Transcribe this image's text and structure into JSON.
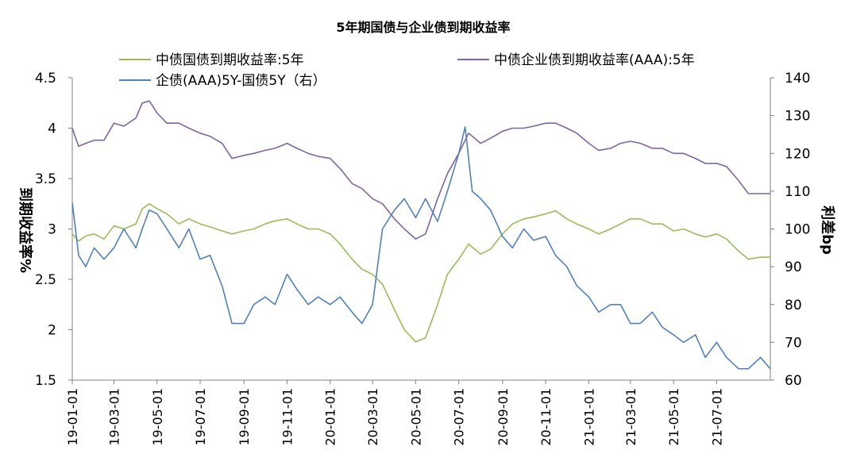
{
  "chart_data": {
    "type": "line",
    "title": "5年期国债与企业债到期收益率",
    "ylabel_left": "到期收益率%",
    "ylabel_right": "利差bp",
    "ylim_left": [
      1.5,
      4.5
    ],
    "yticks_left": [
      "1.5",
      "2",
      "2.5",
      "3",
      "3.5",
      "4",
      "4.5"
    ],
    "ylim_right": [
      60,
      140
    ],
    "yticks_right": [
      "60",
      "70",
      "80",
      "90",
      "100",
      "110",
      "120",
      "130",
      "140"
    ],
    "xlim": [
      "2019-01-01",
      "2021-09-15"
    ],
    "xticks": [
      "19-01-01",
      "19-03-01",
      "19-05-01",
      "19-07-01",
      "19-09-01",
      "19-11-01",
      "20-01-01",
      "20-03-01",
      "20-05-01",
      "20-07-01",
      "20-09-01",
      "20-11-01",
      "21-01-01",
      "21-03-01",
      "21-05-01",
      "21-07-01"
    ],
    "legend": {
      "placement": "top",
      "entries": [
        "中债国债到期收益率:5年",
        "中债企业债到期收益率(AAA):5年",
        "企债(AAA)5Y-国债5Y（右）"
      ]
    },
    "series": [
      {
        "name": "中债国债到期收益率:5年",
        "axis": "left",
        "color": "#9BBB59",
        "x": [
          "2019-01-01",
          "2019-01-10",
          "2019-01-20",
          "2019-02-01",
          "2019-02-15",
          "2019-03-01",
          "2019-03-15",
          "2019-04-01",
          "2019-04-10",
          "2019-04-20",
          "2019-05-01",
          "2019-05-15",
          "2019-06-01",
          "2019-06-15",
          "2019-07-01",
          "2019-07-15",
          "2019-08-01",
          "2019-08-15",
          "2019-09-01",
          "2019-09-15",
          "2019-10-01",
          "2019-10-15",
          "2019-11-01",
          "2019-11-15",
          "2019-12-01",
          "2019-12-15",
          "2020-01-01",
          "2020-01-15",
          "2020-02-01",
          "2020-02-15",
          "2020-03-01",
          "2020-03-15",
          "2020-04-01",
          "2020-04-15",
          "2020-05-01",
          "2020-05-15",
          "2020-06-01",
          "2020-06-15",
          "2020-07-01",
          "2020-07-15",
          "2020-08-01",
          "2020-08-15",
          "2020-09-01",
          "2020-09-15",
          "2020-10-01",
          "2020-10-15",
          "2020-11-01",
          "2020-11-15",
          "2020-12-01",
          "2020-12-15",
          "2021-01-01",
          "2021-01-15",
          "2021-02-01",
          "2021-02-15",
          "2021-03-01",
          "2021-03-15",
          "2021-04-01",
          "2021-04-15",
          "2021-05-01",
          "2021-05-15",
          "2021-06-01",
          "2021-06-15",
          "2021-07-01",
          "2021-07-15",
          "2021-08-01",
          "2021-08-15",
          "2021-09-01",
          "2021-09-15"
        ],
        "values": [
          2.95,
          2.88,
          2.93,
          2.95,
          2.9,
          3.03,
          3.0,
          3.05,
          3.2,
          3.25,
          3.2,
          3.15,
          3.05,
          3.1,
          3.05,
          3.02,
          2.98,
          2.95,
          2.98,
          3.0,
          3.05,
          3.08,
          3.1,
          3.05,
          3.0,
          3.0,
          2.95,
          2.85,
          2.7,
          2.6,
          2.55,
          2.45,
          2.2,
          2.0,
          1.88,
          1.92,
          2.25,
          2.55,
          2.7,
          2.85,
          2.75,
          2.8,
          2.95,
          3.05,
          3.1,
          3.12,
          3.15,
          3.18,
          3.1,
          3.05,
          3.0,
          2.95,
          3.0,
          3.05,
          3.1,
          3.1,
          3.05,
          3.05,
          2.98,
          3.0,
          2.95,
          2.92,
          2.95,
          2.9,
          2.78,
          2.7,
          2.72,
          2.72
        ]
      },
      {
        "name": "中债企业债到期收益率(AAA):5年",
        "axis": "left",
        "color": "#8064A2",
        "x": [
          "2019-01-01",
          "2019-01-10",
          "2019-01-20",
          "2019-02-01",
          "2019-02-15",
          "2019-03-01",
          "2019-03-15",
          "2019-04-01",
          "2019-04-10",
          "2019-04-20",
          "2019-05-01",
          "2019-05-15",
          "2019-06-01",
          "2019-06-15",
          "2019-07-01",
          "2019-07-15",
          "2019-08-01",
          "2019-08-15",
          "2019-09-01",
          "2019-09-15",
          "2019-10-01",
          "2019-10-15",
          "2019-11-01",
          "2019-11-15",
          "2019-12-01",
          "2019-12-15",
          "2020-01-01",
          "2020-01-15",
          "2020-02-01",
          "2020-02-15",
          "2020-03-01",
          "2020-03-15",
          "2020-04-01",
          "2020-04-15",
          "2020-05-01",
          "2020-05-15",
          "2020-06-01",
          "2020-06-15",
          "2020-07-01",
          "2020-07-15",
          "2020-08-01",
          "2020-08-15",
          "2020-09-01",
          "2020-09-15",
          "2020-10-01",
          "2020-10-15",
          "2020-11-01",
          "2020-11-15",
          "2020-12-01",
          "2020-12-15",
          "2021-01-01",
          "2021-01-15",
          "2021-02-01",
          "2021-02-15",
          "2021-03-01",
          "2021-03-15",
          "2021-04-01",
          "2021-04-15",
          "2021-05-01",
          "2021-05-15",
          "2021-06-01",
          "2021-06-15",
          "2021-07-01",
          "2021-07-15",
          "2021-08-01",
          "2021-08-15",
          "2021-09-01",
          "2021-09-15"
        ],
        "values": [
          4.0,
          3.82,
          3.85,
          3.88,
          3.88,
          4.05,
          4.02,
          4.1,
          4.25,
          4.27,
          4.15,
          4.05,
          4.05,
          4.0,
          3.95,
          3.92,
          3.85,
          3.7,
          3.73,
          3.75,
          3.78,
          3.8,
          3.85,
          3.8,
          3.75,
          3.72,
          3.7,
          3.6,
          3.45,
          3.4,
          3.3,
          3.25,
          3.1,
          3.0,
          2.9,
          2.95,
          3.3,
          3.55,
          3.75,
          3.95,
          3.85,
          3.9,
          3.97,
          4.0,
          4.0,
          4.02,
          4.05,
          4.05,
          4.0,
          3.95,
          3.85,
          3.78,
          3.8,
          3.85,
          3.87,
          3.85,
          3.8,
          3.8,
          3.75,
          3.75,
          3.7,
          3.65,
          3.65,
          3.62,
          3.48,
          3.35,
          3.35,
          3.35
        ]
      },
      {
        "name": "企债(AAA)5Y-国债5Y（右）",
        "axis": "right",
        "color": "#4F81BD",
        "x": [
          "2019-01-01",
          "2019-01-10",
          "2019-01-20",
          "2019-02-01",
          "2019-02-15",
          "2019-03-01",
          "2019-03-15",
          "2019-04-01",
          "2019-04-10",
          "2019-04-20",
          "2019-05-01",
          "2019-05-15",
          "2019-06-01",
          "2019-06-15",
          "2019-07-01",
          "2019-07-15",
          "2019-08-01",
          "2019-08-15",
          "2019-09-01",
          "2019-09-15",
          "2019-10-01",
          "2019-10-15",
          "2019-11-01",
          "2019-11-15",
          "2019-12-01",
          "2019-12-15",
          "2020-01-01",
          "2020-01-15",
          "2020-02-01",
          "2020-02-15",
          "2020-03-01",
          "2020-03-15",
          "2020-04-01",
          "2020-04-15",
          "2020-05-01",
          "2020-05-15",
          "2020-06-01",
          "2020-06-15",
          "2020-07-01",
          "2020-07-10",
          "2020-07-20",
          "2020-08-01",
          "2020-08-15",
          "2020-09-01",
          "2020-09-15",
          "2020-10-01",
          "2020-10-15",
          "2020-11-01",
          "2020-11-15",
          "2020-12-01",
          "2020-12-15",
          "2021-01-01",
          "2021-01-15",
          "2021-02-01",
          "2021-02-15",
          "2021-03-01",
          "2021-03-15",
          "2021-04-01",
          "2021-04-15",
          "2021-05-01",
          "2021-05-15",
          "2021-06-01",
          "2021-06-15",
          "2021-07-01",
          "2021-07-15",
          "2021-08-01",
          "2021-08-15",
          "2021-09-01",
          "2021-09-15"
        ],
        "values": [
          107,
          93,
          90,
          95,
          92,
          95,
          100,
          95,
          100,
          105,
          104,
          100,
          95,
          100,
          92,
          93,
          85,
          75,
          75,
          80,
          82,
          80,
          88,
          84,
          80,
          82,
          80,
          82,
          78,
          75,
          80,
          100,
          105,
          108,
          103,
          108,
          102,
          110,
          120,
          127,
          110,
          108,
          105,
          98,
          95,
          100,
          97,
          98,
          93,
          90,
          85,
          82,
          78,
          80,
          80,
          75,
          75,
          78,
          74,
          72,
          70,
          72,
          66,
          70,
          66,
          63,
          63,
          66,
          63
        ]
      }
    ]
  }
}
